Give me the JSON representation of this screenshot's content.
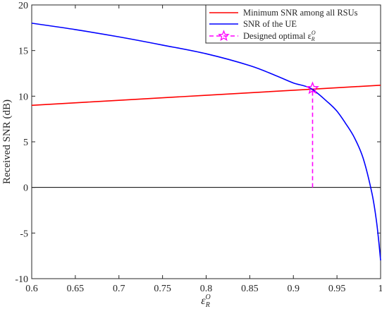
{
  "chart_data": {
    "type": "line",
    "xlabel": "ε",
    "xlabel_sup": "O",
    "xlabel_sub": "R",
    "ylabel": "Received SNR (dB)",
    "xlim": [
      0.6,
      1.0
    ],
    "ylim": [
      -10,
      20
    ],
    "xticks": [
      0.6,
      0.65,
      0.7,
      0.75,
      0.8,
      0.85,
      0.9,
      0.95,
      1
    ],
    "xtick_labels": [
      "0.6",
      "0.65",
      "0.7",
      "0.75",
      "0.8",
      "0.85",
      "0.9",
      "0.95",
      "1"
    ],
    "yticks": [
      -10,
      -5,
      0,
      5,
      10,
      15,
      20
    ],
    "ytick_labels": [
      "-10",
      "-5",
      "0",
      "5",
      "10",
      "15",
      "20"
    ],
    "grid": false,
    "legend_position": "top-right",
    "reference_line": {
      "y": 0,
      "color": "#000000"
    },
    "series": [
      {
        "name": "Minimum SNR among all RSUs",
        "color": "#ff0000",
        "x": [
          0.6,
          0.7,
          0.8,
          0.9,
          1.0
        ],
        "y": [
          9.0,
          9.55,
          10.1,
          10.65,
          11.2
        ]
      },
      {
        "name": "SNR of the UE",
        "color": "#0000ff",
        "x": [
          0.6,
          0.65,
          0.7,
          0.75,
          0.8,
          0.85,
          0.88,
          0.9,
          0.92,
          0.94,
          0.95,
          0.96,
          0.97,
          0.98,
          0.99,
          0.995,
          0.998,
          1.0
        ],
        "y": [
          18.0,
          17.3,
          16.5,
          15.6,
          14.65,
          13.35,
          12.25,
          11.45,
          10.85,
          9.3,
          8.35,
          7.0,
          5.45,
          3.2,
          -0.6,
          -3.5,
          -6.0,
          -8.0
        ]
      }
    ],
    "marker": {
      "name": "Designed optimal ε",
      "name_sup": "O",
      "name_sub": "R",
      "color": "#ff00ff",
      "x": 0.922,
      "y": 10.85,
      "line_from_y": 0
    }
  }
}
